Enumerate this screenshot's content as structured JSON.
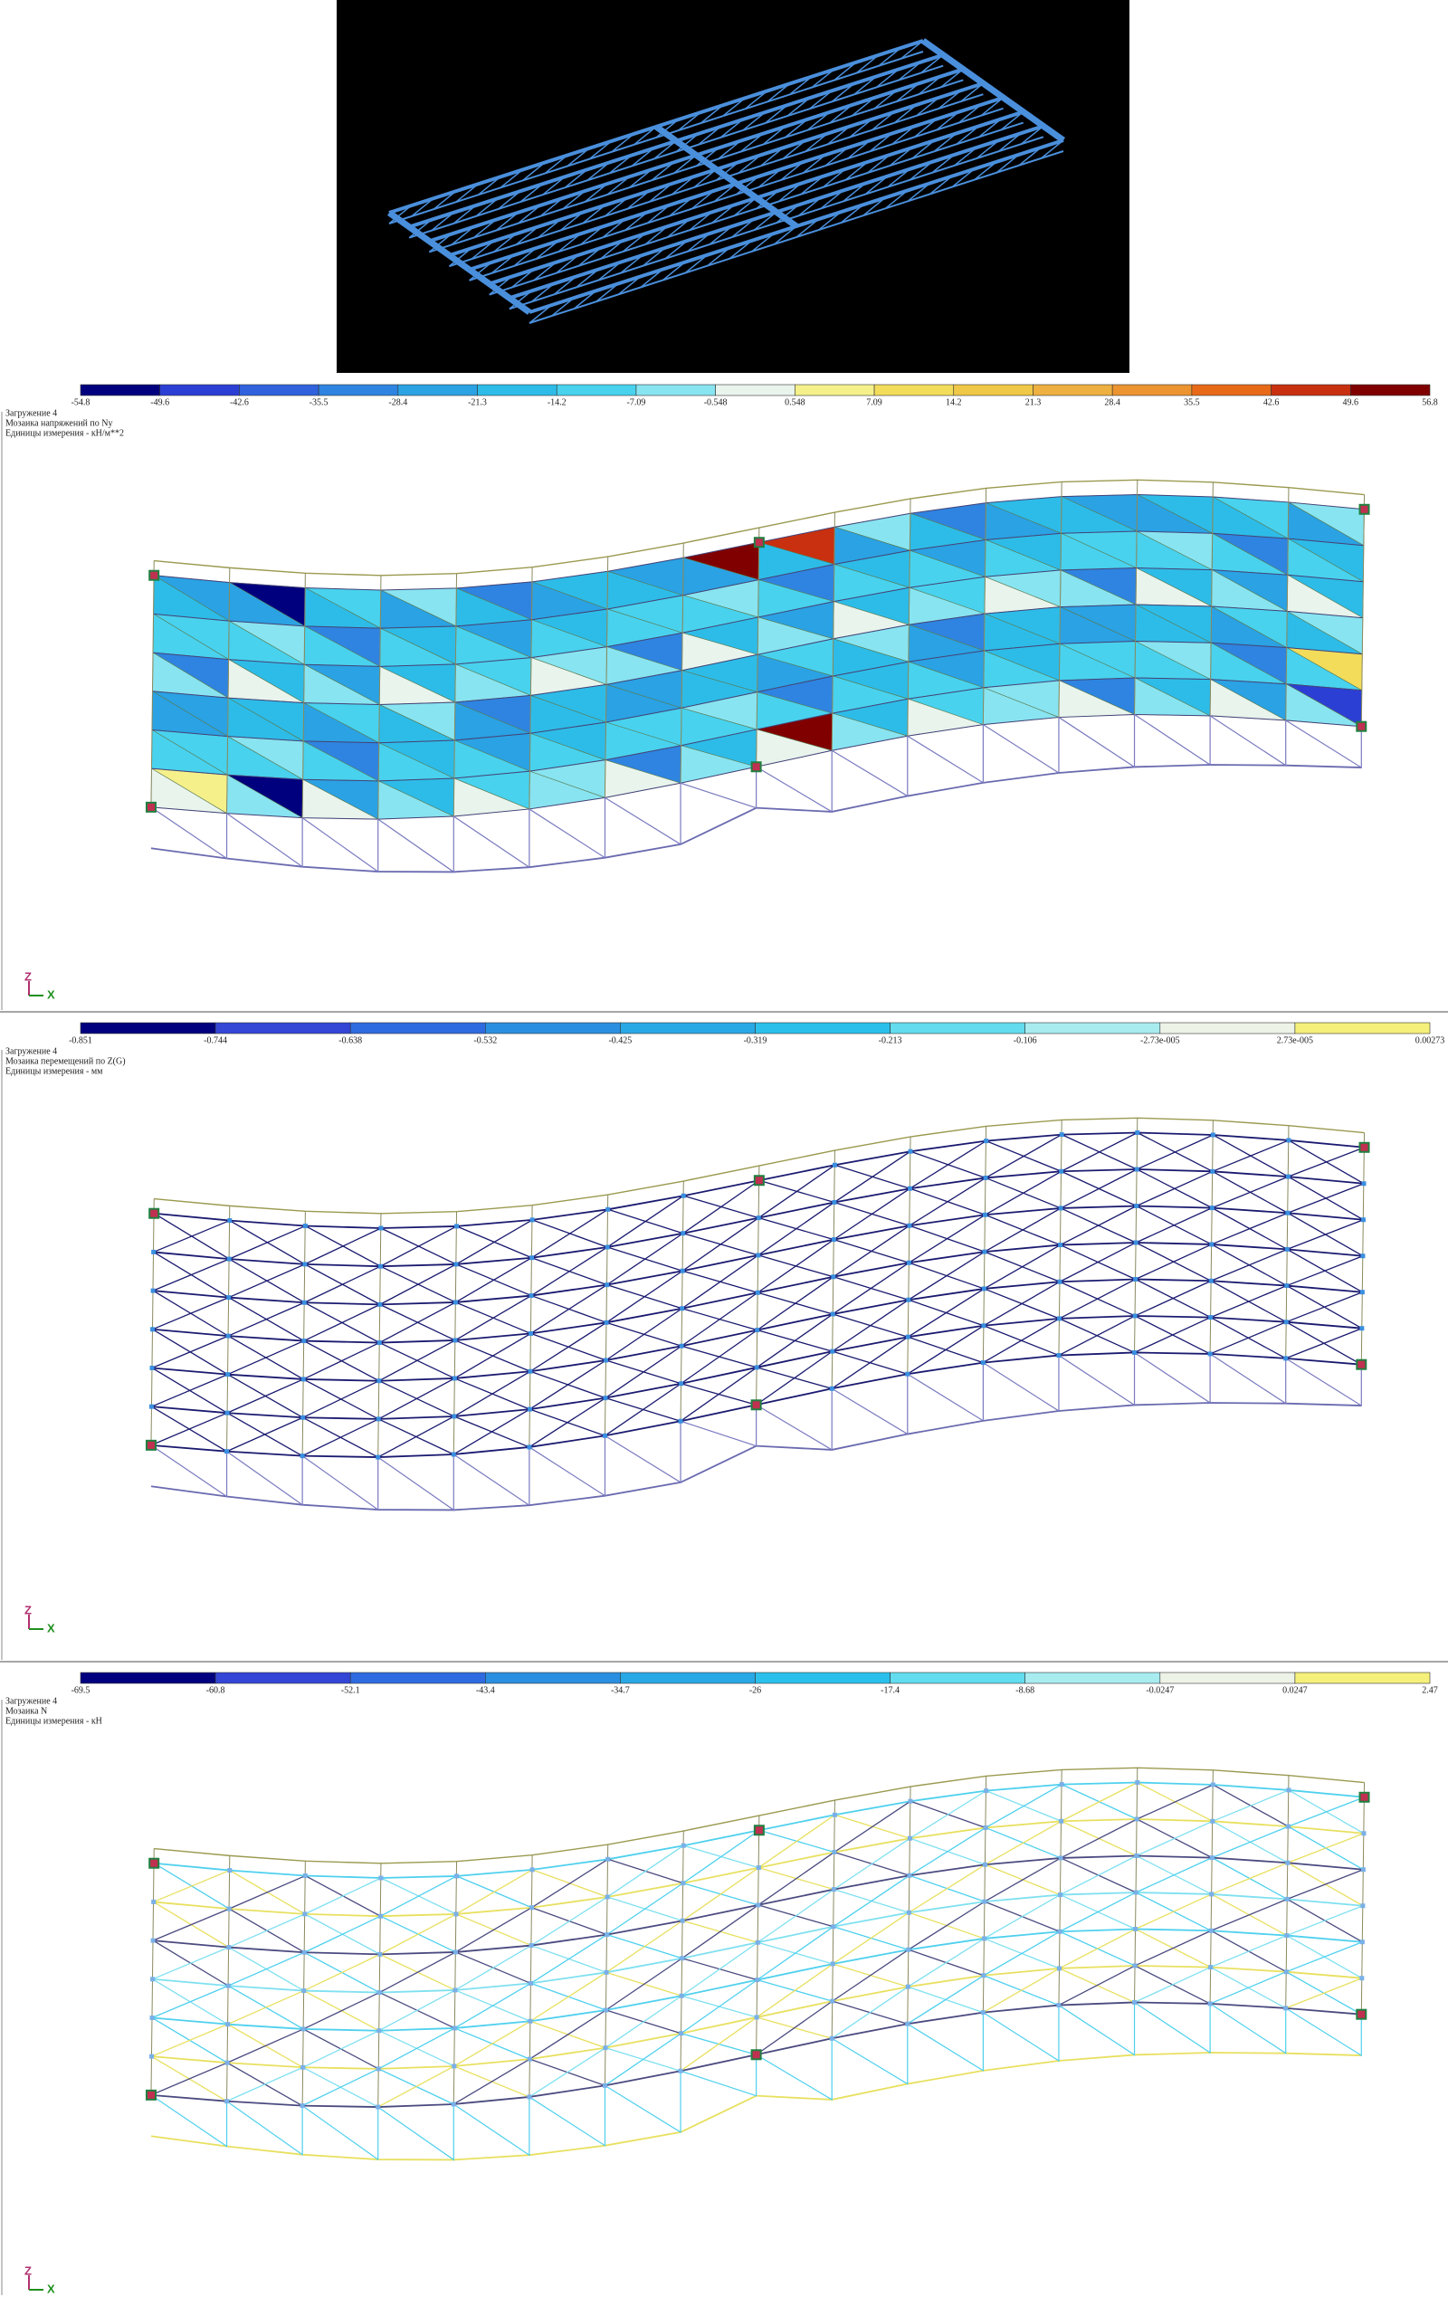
{
  "panels": [
    {
      "header": [
        "Загружение 4",
        "Мозаика напряжений по Ny",
        "Единицы измерения - кН/м**2"
      ],
      "scale": [
        "-54.8",
        "-49.6",
        "-42.6",
        "-35.5",
        "-28.4",
        "-21.3",
        "-14.2",
        "-7.09",
        "-0.548",
        "0.548",
        "7.09",
        "14.2",
        "21.3",
        "28.4",
        "35.5",
        "42.6",
        "49.6",
        "56.8"
      ],
      "colors": [
        "#00007f",
        "#2b3fd4",
        "#2f62dc",
        "#2e84e0",
        "#2aa2e4",
        "#2dbce8",
        "#48d2ee",
        "#88e4f0",
        "#e8f4ec",
        "#f5f08a",
        "#f2dc5a",
        "#f0c848",
        "#eeb040",
        "#ec9430",
        "#e86a18",
        "#c83010",
        "#800000"
      ],
      "axis": [
        "Z",
        "X"
      ]
    },
    {
      "header": [
        "Загружение 4",
        "Мозаика перемещений по Z(G)",
        "Единицы измерения - мм"
      ],
      "scale": [
        "-0.851",
        "-0.744",
        "-0.638",
        "-0.532",
        "-0.425",
        "-0.319",
        "-0.213",
        "-0.106",
        "-2.73e-005",
        "2.73e-005",
        "0.00273"
      ],
      "colors": [
        "#00007f",
        "#3346d6",
        "#2f6be0",
        "#2a8fe0",
        "#29a8e6",
        "#2bc0ec",
        "#62dcee",
        "#a8ecf0",
        "#eef3e8",
        "#f5f07a"
      ],
      "axis": [
        "Z",
        "X"
      ]
    },
    {
      "header": [
        "Загружение 4",
        "Мозаика N",
        "Единицы измерения - кН"
      ],
      "scale": [
        "-69.5",
        "-60.8",
        "-52.1",
        "-43.4",
        "-34.7",
        "-26",
        "-17.4",
        "-8.68",
        "-0.0247",
        "0.0247",
        "2.47"
      ],
      "colors": [
        "#00007f",
        "#3346d6",
        "#2f6be0",
        "#2a8fe0",
        "#29a8e6",
        "#2bc0ec",
        "#62dcee",
        "#a8ecf0",
        "#eef3e8",
        "#f5f07a"
      ],
      "axis": [
        "Z",
        "X"
      ]
    }
  ]
}
